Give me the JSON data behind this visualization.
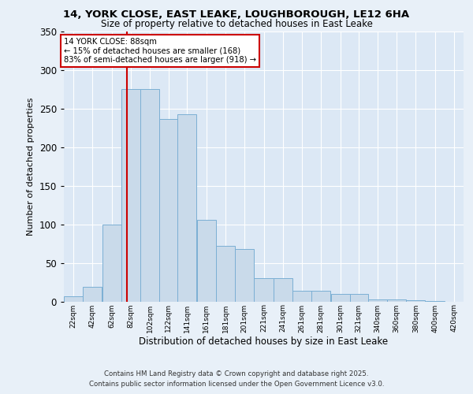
{
  "title1": "14, YORK CLOSE, EAST LEAKE, LOUGHBOROUGH, LE12 6HA",
  "title2": "Size of property relative to detached houses in East Leake",
  "xlabel": "Distribution of detached houses by size in East Leake",
  "ylabel": "Number of detached properties",
  "bin_labels": [
    "22sqm",
    "42sqm",
    "62sqm",
    "82sqm",
    "102sqm",
    "122sqm",
    "141sqm",
    "161sqm",
    "181sqm",
    "201sqm",
    "221sqm",
    "241sqm",
    "261sqm",
    "281sqm",
    "301sqm",
    "321sqm",
    "340sqm",
    "360sqm",
    "380sqm",
    "400sqm",
    "420sqm"
  ],
  "bar_heights": [
    7,
    19,
    100,
    275,
    275,
    237,
    243,
    106,
    72,
    68,
    30,
    30,
    14,
    14,
    10,
    10,
    3,
    3,
    2,
    1,
    0
  ],
  "bar_color": "#c9daea",
  "bar_edge_color": "#7bafd4",
  "annotation_line1": "14 YORK CLOSE: 88sqm",
  "annotation_line2": "← 15% of detached houses are smaller (168)",
  "annotation_line3": "83% of semi-detached houses are larger (918) →",
  "vline_x": 88,
  "vline_color": "#cc0000",
  "ylim": [
    0,
    350
  ],
  "yticks": [
    0,
    50,
    100,
    150,
    200,
    250,
    300,
    350
  ],
  "background_color": "#e8f0f8",
  "plot_bg_color": "#dce8f5",
  "grid_color": "#ffffff",
  "footer_text1": "Contains HM Land Registry data © Crown copyright and database right 2025.",
  "footer_text2": "Contains public sector information licensed under the Open Government Licence v3.0.",
  "bin_edges": [
    22,
    42,
    62,
    82,
    102,
    122,
    141,
    161,
    181,
    201,
    221,
    241,
    261,
    281,
    301,
    321,
    340,
    360,
    380,
    400,
    420,
    440
  ]
}
